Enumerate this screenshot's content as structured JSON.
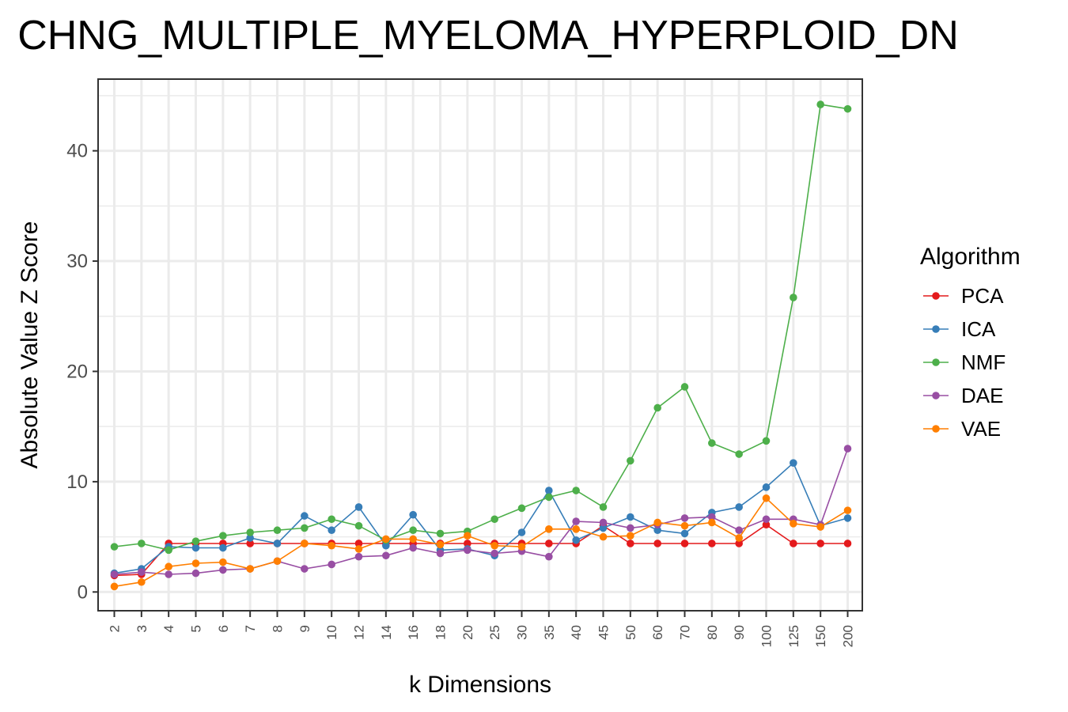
{
  "chart_data": {
    "type": "line",
    "title": "CHNG_MULTIPLE_MYELOMA_HYPERPLOID_DN",
    "xlabel": "k Dimensions",
    "ylabel": "Absolute Value Z Score",
    "categories": [
      "2",
      "3",
      "4",
      "5",
      "6",
      "7",
      "8",
      "9",
      "10",
      "12",
      "14",
      "16",
      "18",
      "20",
      "25",
      "30",
      "35",
      "40",
      "45",
      "50",
      "60",
      "70",
      "80",
      "90",
      "100",
      "125",
      "150",
      "200"
    ],
    "yticks": [
      0,
      10,
      20,
      30,
      40
    ],
    "ylim": [
      -1.7,
      46.5
    ],
    "grid": true,
    "legend": {
      "title": "Algorithm",
      "position": "right"
    },
    "series": [
      {
        "name": "PCA",
        "color": "#e41a1c",
        "values": [
          1.5,
          1.6,
          4.4,
          4.4,
          4.4,
          4.4,
          4.4,
          4.4,
          4.4,
          4.4,
          4.4,
          4.4,
          4.4,
          4.4,
          4.4,
          4.4,
          4.4,
          4.4,
          6.0,
          4.4,
          4.4,
          4.4,
          4.4,
          4.4,
          6.1,
          4.4,
          4.4,
          4.4
        ]
      },
      {
        "name": "ICA",
        "color": "#377eb8",
        "values": [
          1.7,
          2.1,
          4.1,
          4.0,
          4.0,
          4.9,
          4.4,
          6.9,
          5.6,
          7.7,
          4.2,
          7.0,
          3.8,
          3.9,
          3.3,
          5.4,
          9.2,
          4.7,
          5.8,
          6.8,
          5.6,
          5.3,
          7.2,
          7.7,
          9.5,
          11.7,
          6.0,
          6.7
        ]
      },
      {
        "name": "NMF",
        "color": "#4daf4a",
        "values": [
          4.1,
          4.4,
          3.8,
          4.6,
          5.1,
          5.4,
          5.6,
          5.8,
          6.6,
          6.0,
          4.7,
          5.6,
          5.3,
          5.5,
          6.6,
          7.6,
          8.6,
          9.2,
          7.7,
          11.9,
          16.7,
          18.6,
          13.5,
          12.5,
          13.7,
          26.7,
          44.2,
          43.8
        ]
      },
      {
        "name": "DAE",
        "color": "#984ea3",
        "values": [
          1.6,
          1.8,
          1.6,
          1.7,
          2.0,
          2.1,
          2.8,
          2.1,
          2.5,
          3.2,
          3.3,
          4.0,
          3.5,
          3.8,
          3.5,
          3.7,
          3.2,
          6.4,
          6.3,
          5.8,
          6.1,
          6.7,
          6.8,
          5.6,
          6.6,
          6.6,
          6.1,
          13.0
        ]
      },
      {
        "name": "VAE",
        "color": "#ff7f00",
        "values": [
          0.5,
          0.9,
          2.3,
          2.6,
          2.7,
          2.1,
          2.8,
          4.4,
          4.2,
          3.9,
          4.8,
          4.8,
          4.3,
          5.1,
          4.2,
          4.1,
          5.7,
          5.7,
          5.0,
          5.1,
          6.3,
          6.0,
          6.3,
          4.9,
          8.5,
          6.2,
          5.9,
          7.4
        ]
      }
    ]
  }
}
